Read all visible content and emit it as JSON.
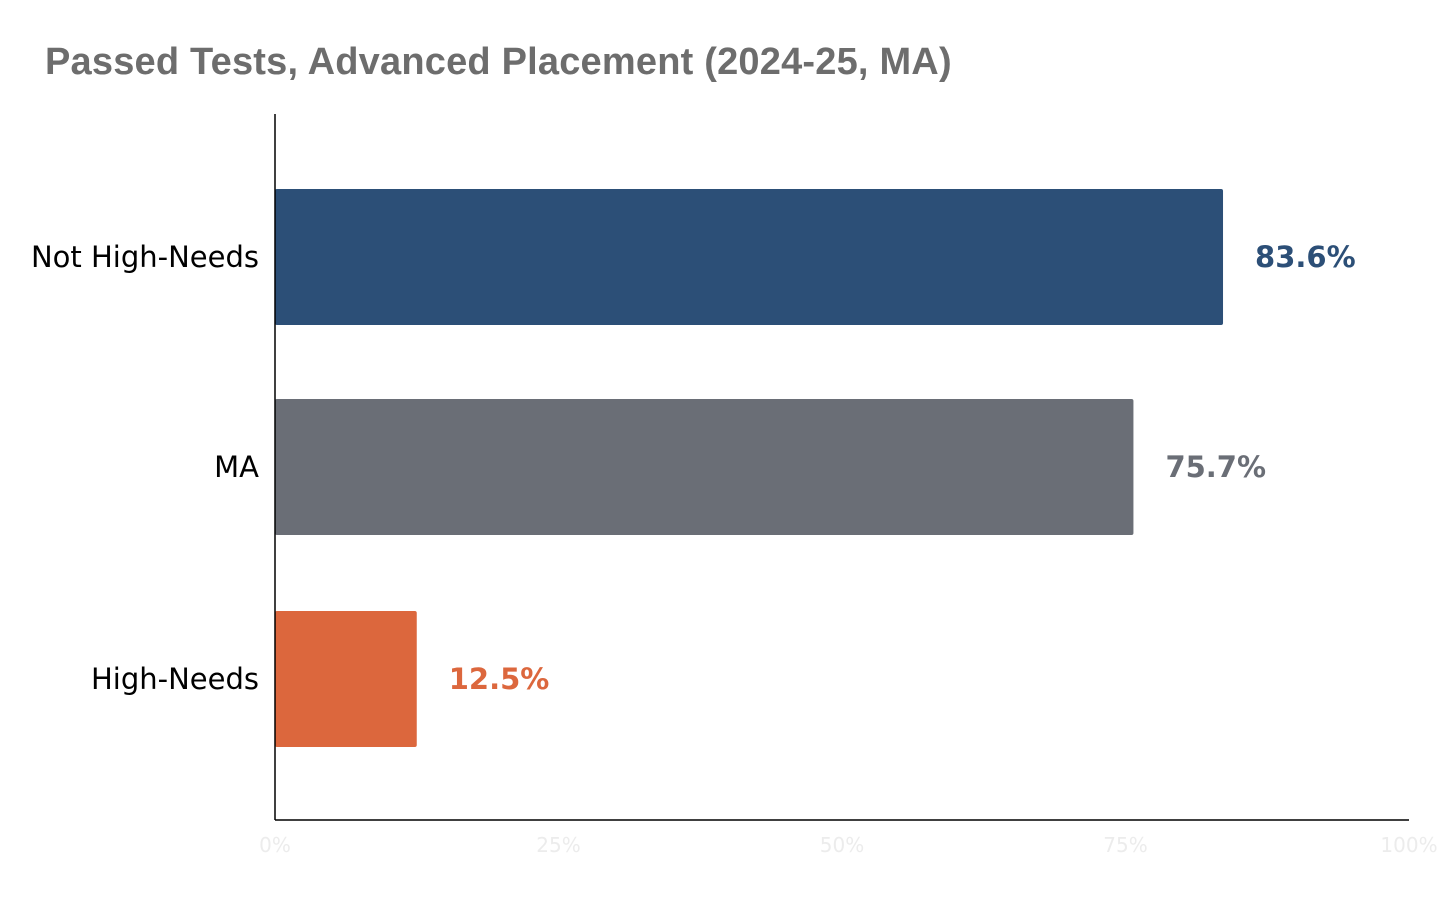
{
  "chart_data": {
    "type": "bar",
    "orientation": "horizontal",
    "title": "Passed Tests, Advanced Placement (2024-25, MA)",
    "xlabel": "",
    "ylabel": "",
    "xlim": [
      0,
      100
    ],
    "grid": false,
    "legend": "none",
    "categories": [
      "Not High-Needs",
      "MA",
      "High-Needs"
    ],
    "values": [
      83.6,
      75.7,
      12.5
    ],
    "value_labels": [
      "83.6%",
      "75.7%",
      "12.5%"
    ],
    "colors": [
      "#2c4f77",
      "#6a6e76",
      "#dc673d"
    ],
    "x_ticks": [
      {
        "value": 0,
        "label": "0%"
      },
      {
        "value": 25,
        "label": "25%"
      },
      {
        "value": 50,
        "label": "50%"
      },
      {
        "value": 75,
        "label": "75%"
      },
      {
        "value": 100,
        "label": "100%"
      }
    ]
  }
}
